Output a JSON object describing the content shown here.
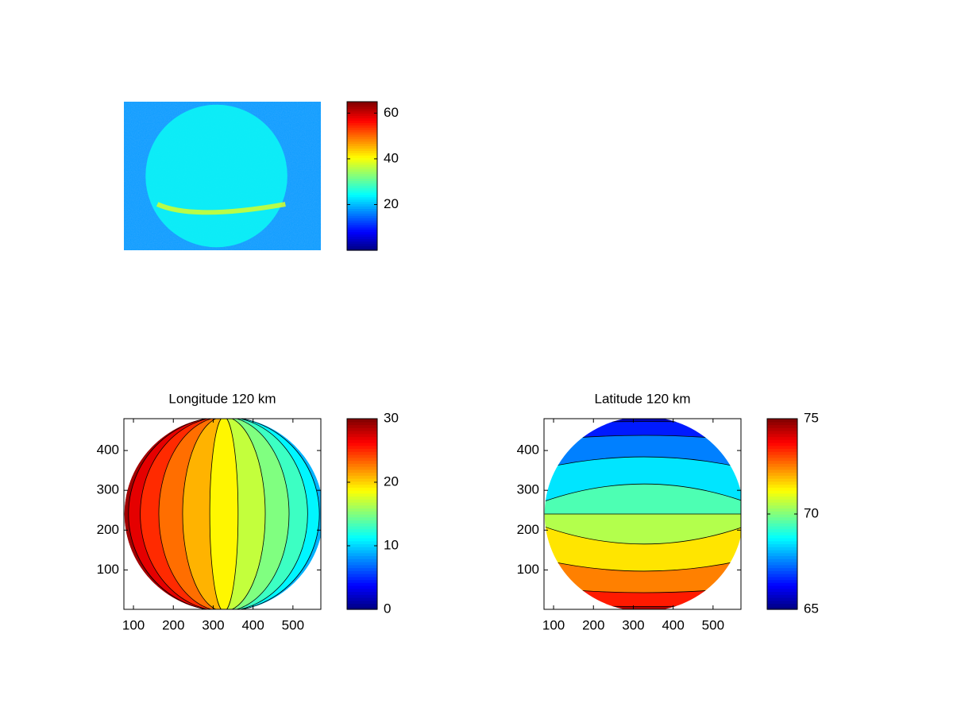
{
  "chart_data": [
    {
      "type": "image",
      "clim": [
        0,
        65
      ],
      "colorbar_ticks": [
        20,
        40,
        60
      ]
    },
    {
      "type": "contour",
      "title": "Longitude 120 km",
      "orientation": "vertical",
      "xlim": [
        76,
        570
      ],
      "ylim": [
        1,
        480
      ],
      "xticks": [
        100,
        200,
        300,
        400,
        500
      ],
      "yticks": [
        100,
        200,
        300,
        400
      ],
      "levels": [
        30,
        28,
        26,
        24,
        22,
        20,
        18,
        16,
        14,
        12,
        10,
        8
      ],
      "clim": [
        0,
        30
      ],
      "colorbar_ticks": [
        0,
        10,
        20,
        30
      ]
    },
    {
      "type": "contour",
      "title": "Latitude 120 km",
      "orientation": "horizontal",
      "xlim": [
        76,
        570
      ],
      "ylim": [
        1,
        480
      ],
      "xticks": [
        100,
        200,
        300,
        400,
        500
      ],
      "yticks": [
        100,
        200,
        300,
        400
      ],
      "levels": [
        65,
        66,
        67,
        68,
        69,
        70,
        71,
        72,
        73,
        74,
        75
      ],
      "clim": [
        65,
        75
      ],
      "colorbar_ticks": [
        65,
        70,
        75
      ]
    }
  ]
}
